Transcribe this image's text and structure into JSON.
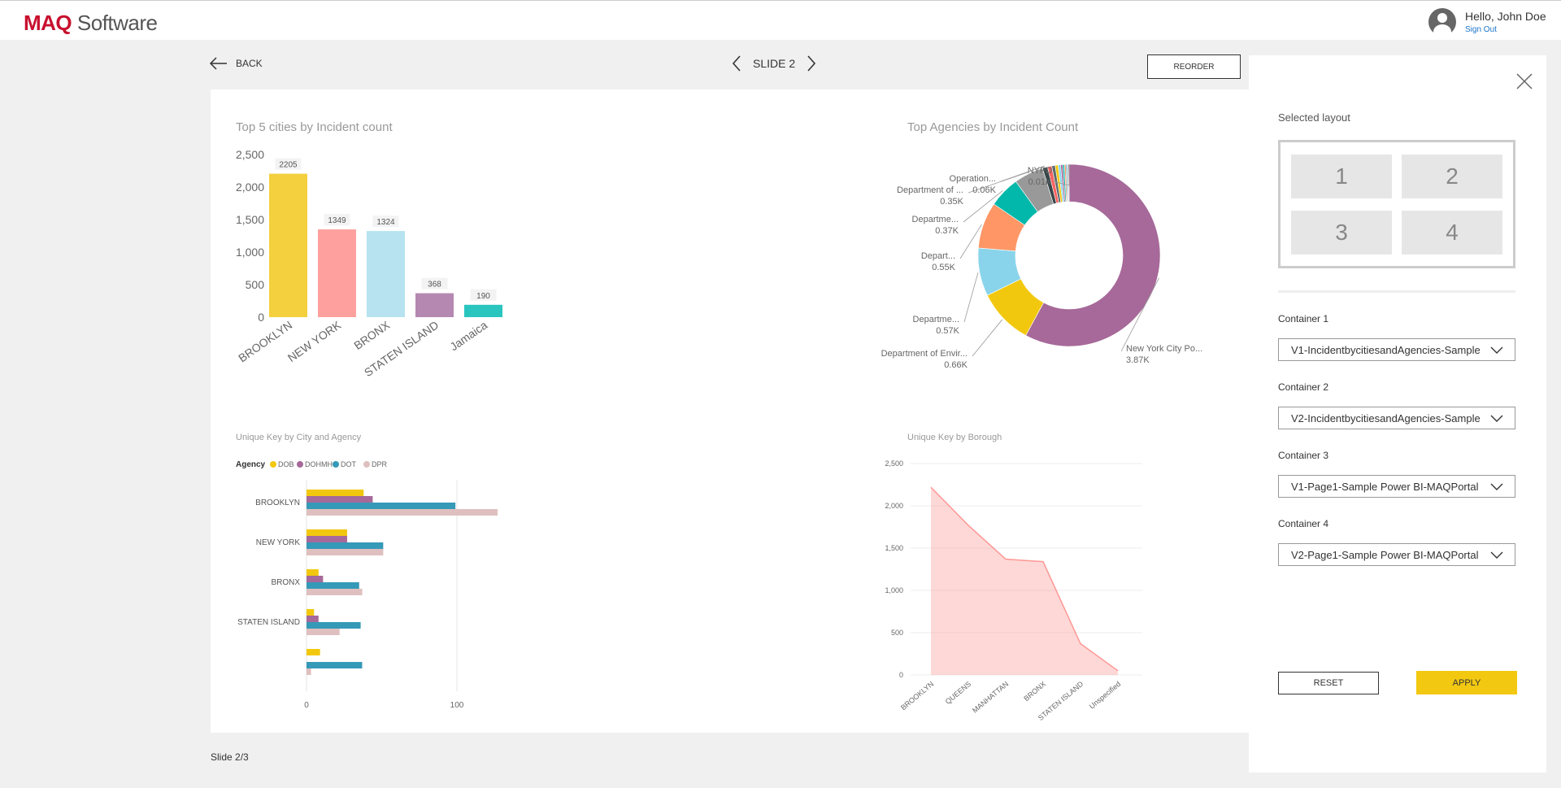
{
  "header": {
    "logo_brand": "MAQ",
    "logo_rest": " Software",
    "greeting": "Hello, John Doe",
    "sign_out": "Sign Out"
  },
  "nav": {
    "back_label": "BACK",
    "slide_label": "SLIDE 2",
    "reorder_label": "REORDER",
    "footer": "Slide 2/3"
  },
  "panel": {
    "selected_layout_label": "Selected layout",
    "tiles": [
      "1",
      "2",
      "3",
      "4"
    ],
    "containers": [
      {
        "label": "Container 1",
        "value": "V1-IncidentbycitiesandAgencies-Sample"
      },
      {
        "label": "Container 2",
        "value": "V2-IncidentbycitiesandAgencies-Sample"
      },
      {
        "label": "Container 3",
        "value": "V1-Page1-Sample Power BI-MAQPortal"
      },
      {
        "label": "Container 4",
        "value": "V2-Page1-Sample Power BI-MAQPortal"
      }
    ],
    "reset_label": "RESET",
    "apply_label": "APPLY"
  },
  "chart_data": [
    {
      "type": "bar",
      "title": "Top 5 cities by Incident count",
      "categories": [
        "BROOKLYN",
        "NEW YORK",
        "BRONX",
        "STATEN ISLAND",
        "Jamaica"
      ],
      "values": [
        2205,
        1349,
        1324,
        368,
        190
      ],
      "colors": [
        "#f4d03f",
        "#fea19e",
        "#b6e3ef",
        "#b588b2",
        "#2bc5c0"
      ],
      "ylim": [
        0,
        2500
      ],
      "yticks": [
        "0",
        "500",
        "1,000",
        "1,500",
        "2,000",
        "2,500"
      ]
    },
    {
      "type": "pie",
      "title": "Top Agencies by Incident Count",
      "slices": [
        {
          "label": "New York City Po...",
          "value_label": "3.87K",
          "value": 3.87,
          "color": "#a66999"
        },
        {
          "label": "Department of Envir...",
          "value_label": "0.66K",
          "value": 0.66,
          "color": "#f2c80f"
        },
        {
          "label": "Departme...",
          "value_label": "0.57K",
          "value": 0.57,
          "color": "#8ad4eb"
        },
        {
          "label": "Depart...",
          "value_label": "0.55K",
          "value": 0.55,
          "color": "#fe9666"
        },
        {
          "label": "Departme...",
          "value_label": "0.37K",
          "value": 0.37,
          "color": "#01b8aa"
        },
        {
          "label": "Department of ...",
          "value_label": "0.35K",
          "value": 0.35,
          "color": "#999999"
        },
        {
          "label": "Operation...",
          "value_label": "0.06K",
          "value": 0.06,
          "color": "#374649"
        },
        {
          "label": "",
          "value_label": "",
          "value": 0.05,
          "color": "#fd625e"
        },
        {
          "label": "",
          "value_label": "",
          "value": 0.04,
          "color": "#5f6b6d"
        },
        {
          "label": "",
          "value_label": "",
          "value": 0.035,
          "color": "#f2c80f"
        },
        {
          "label": "",
          "value_label": "",
          "value": 0.03,
          "color": "#8ad4eb"
        },
        {
          "label": "",
          "value_label": "",
          "value": 0.025,
          "color": "#a66999"
        },
        {
          "label": "",
          "value_label": "",
          "value": 0.02,
          "color": "#01b8aa"
        },
        {
          "label": "",
          "value_label": "",
          "value": 0.018,
          "color": "#fe9666"
        },
        {
          "label": "",
          "value_label": "",
          "value": 0.015,
          "color": "#3599b8"
        },
        {
          "label": "",
          "value_label": "",
          "value": 0.012,
          "color": "#dfbfbf"
        },
        {
          "label": "NYPD",
          "value_label": "0.01K",
          "value": 0.01,
          "color": "#374649"
        }
      ]
    },
    {
      "type": "bar",
      "orientation": "horizontal",
      "title": "Unique Key by City and Agency",
      "legend_title": "Agency",
      "categories": [
        "BROOKLYN",
        "NEW YORK",
        "BRONX",
        "STATEN ISLAND",
        ""
      ],
      "series": [
        {
          "name": "DOB",
          "color": "#f2c80f",
          "values": [
            38,
            27,
            8,
            5,
            9
          ]
        },
        {
          "name": "DOHMH",
          "color": "#a66999",
          "values": [
            44,
            27,
            11,
            8,
            0
          ]
        },
        {
          "name": "DOT",
          "color": "#3599b8",
          "values": [
            99,
            51,
            35,
            36,
            37
          ]
        },
        {
          "name": "DPR",
          "color": "#dfbfbf",
          "values": [
            127,
            51,
            37,
            22,
            3
          ]
        }
      ],
      "xticks": [
        0,
        100
      ],
      "xlim": [
        0,
        130
      ]
    },
    {
      "type": "area",
      "title": "Unique Key by Borough",
      "categories": [
        "BROOKLYN",
        "QUEENS",
        "MANHATTAN",
        "BRONX",
        "STATEN ISLAND",
        "Unspecified"
      ],
      "values": [
        2220,
        1770,
        1370,
        1340,
        370,
        50
      ],
      "ylim": [
        0,
        2500
      ],
      "yticks": [
        "0",
        "500",
        "1,000",
        "1,500",
        "2,000",
        "2,500"
      ],
      "color": "#fd625e"
    }
  ]
}
